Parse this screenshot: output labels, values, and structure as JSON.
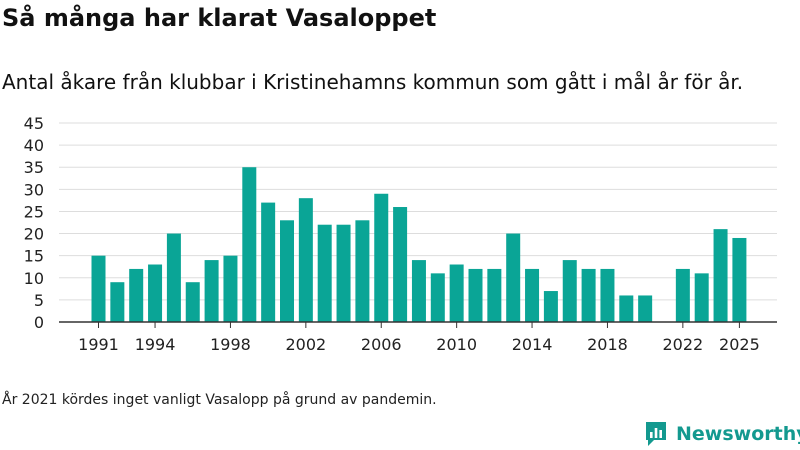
{
  "header": {
    "title": "Så många har klarat Vasaloppet",
    "subtitle": "Antal åkare från klubbar i Kristinehamns kommun som gått i mål år för år."
  },
  "footer": {
    "note": "År 2021 kördes inget vanligt Vasalopp på grund av pandemin.",
    "brand": "Newsworthy",
    "logo_icon": "newsworthy-logo-icon"
  },
  "colors": {
    "bar": "#0aa596",
    "grid": "#dddddd",
    "axis": "#333333",
    "brand": "#13998f"
  },
  "chart_data": {
    "type": "bar",
    "title": "Så många har klarat Vasaloppet",
    "xlabel": "",
    "ylabel": "",
    "ylim": [
      0,
      45
    ],
    "yticks": [
      0,
      5,
      10,
      15,
      20,
      25,
      30,
      35,
      40,
      45
    ],
    "xticks": [
      1991,
      1994,
      1998,
      2002,
      2006,
      2010,
      2014,
      2018,
      2022,
      2025
    ],
    "grid": true,
    "categories": [
      1991,
      1992,
      1993,
      1994,
      1995,
      1996,
      1997,
      1998,
      1999,
      2000,
      2001,
      2002,
      2003,
      2004,
      2005,
      2006,
      2007,
      2008,
      2009,
      2010,
      2011,
      2012,
      2013,
      2014,
      2015,
      2016,
      2017,
      2018,
      2019,
      2020,
      2021,
      2022,
      2023,
      2024,
      2025
    ],
    "values": [
      15,
      9,
      12,
      13,
      20,
      9,
      14,
      15,
      35,
      27,
      23,
      28,
      22,
      22,
      23,
      29,
      26,
      14,
      11,
      13,
      12,
      12,
      20,
      12,
      7,
      14,
      12,
      12,
      6,
      6,
      null,
      12,
      11,
      21,
      19
    ]
  }
}
